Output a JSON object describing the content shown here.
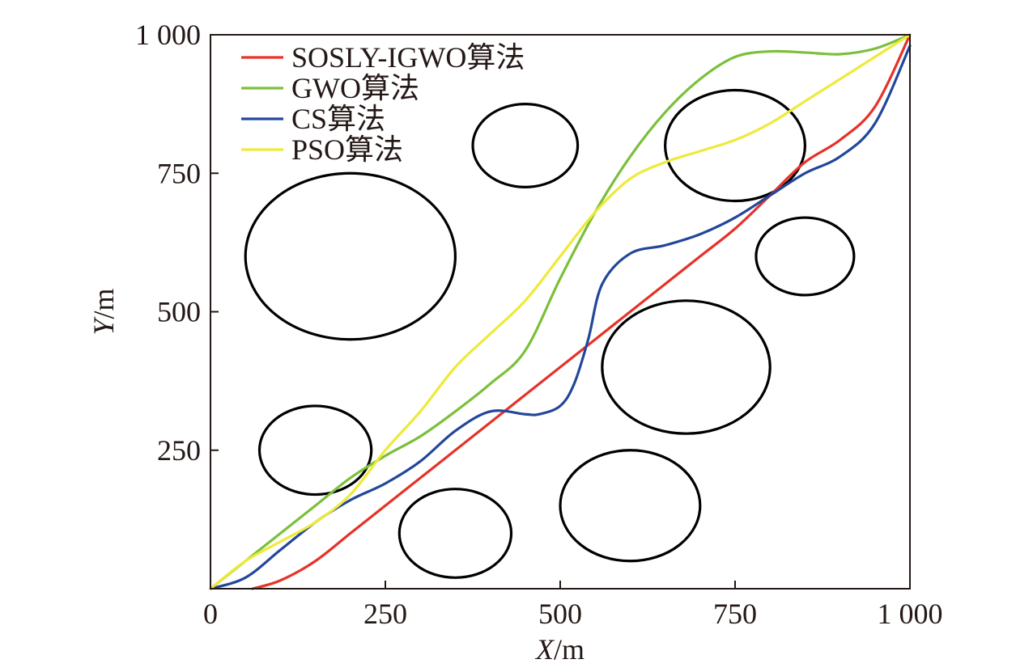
{
  "chart_data": {
    "type": "line",
    "title": "",
    "xlabel": {
      "var": "X",
      "unit": "/m"
    },
    "ylabel": {
      "var": "Y",
      "unit": "/m"
    },
    "xlim": [
      0,
      1000
    ],
    "ylim": [
      0,
      1000
    ],
    "x_ticks": [
      0,
      250,
      500,
      750,
      1000
    ],
    "y_ticks": [
      250,
      500,
      750,
      1000
    ],
    "x_tick_labels": [
      "0",
      "250",
      "500",
      "750",
      "1 000"
    ],
    "y_tick_labels": [
      "250",
      "500",
      "750",
      "1 000"
    ],
    "grid": false,
    "legend_position": "top-left",
    "obstacles": [
      {
        "cx": 200,
        "cy": 600,
        "rx": 150,
        "ry": 150
      },
      {
        "cx": 450,
        "cy": 800,
        "rx": 75,
        "ry": 75
      },
      {
        "cx": 750,
        "cy": 800,
        "rx": 100,
        "ry": 100
      },
      {
        "cx": 850,
        "cy": 600,
        "rx": 70,
        "ry": 70
      },
      {
        "cx": 680,
        "cy": 400,
        "rx": 120,
        "ry": 120
      },
      {
        "cx": 150,
        "cy": 250,
        "rx": 80,
        "ry": 80
      },
      {
        "cx": 350,
        "cy": 100,
        "rx": 80,
        "ry": 80
      },
      {
        "cx": 600,
        "cy": 150,
        "rx": 100,
        "ry": 100
      }
    ],
    "obstacle_color": "#000000",
    "series": [
      {
        "name": "SOSLY-IGWO算法",
        "color": "#e63228",
        "x": [
          60,
          100,
          150,
          200,
          250,
          300,
          350,
          400,
          450,
          500,
          550,
          600,
          650,
          700,
          750,
          800,
          850,
          900,
          950,
          1000
        ],
        "y": [
          0,
          15,
          50,
          100,
          150,
          200,
          250,
          300,
          350,
          400,
          450,
          500,
          550,
          600,
          650,
          710,
          770,
          810,
          870,
          1000
        ]
      },
      {
        "name": "GWO算法",
        "color": "#7bbf3a",
        "x": [
          0,
          50,
          100,
          150,
          200,
          250,
          300,
          350,
          400,
          450,
          500,
          550,
          600,
          650,
          700,
          750,
          800,
          850,
          900,
          950,
          1000
        ],
        "y": [
          0,
          50,
          100,
          150,
          200,
          240,
          275,
          320,
          370,
          430,
          560,
          680,
          780,
          860,
          920,
          960,
          970,
          968,
          965,
          975,
          1000
        ]
      },
      {
        "name": "CS算法",
        "color": "#22479a",
        "x": [
          0,
          50,
          100,
          150,
          200,
          250,
          300,
          350,
          400,
          450,
          470,
          500,
          520,
          540,
          560,
          600,
          650,
          700,
          750,
          800,
          850,
          900,
          950,
          1000
        ],
        "y": [
          0,
          20,
          70,
          120,
          160,
          190,
          230,
          285,
          320,
          315,
          315,
          330,
          370,
          450,
          550,
          605,
          620,
          640,
          670,
          710,
          750,
          780,
          840,
          980
        ]
      },
      {
        "name": "PSO算法",
        "color": "#eeea3a",
        "x": [
          0,
          50,
          100,
          150,
          200,
          250,
          300,
          350,
          400,
          450,
          500,
          550,
          600,
          650,
          700,
          750,
          800,
          850,
          900,
          950,
          1000
        ],
        "y": [
          0,
          50,
          85,
          120,
          170,
          250,
          320,
          400,
          460,
          520,
          600,
          680,
          740,
          770,
          790,
          810,
          840,
          880,
          920,
          960,
          1000
        ]
      }
    ]
  }
}
